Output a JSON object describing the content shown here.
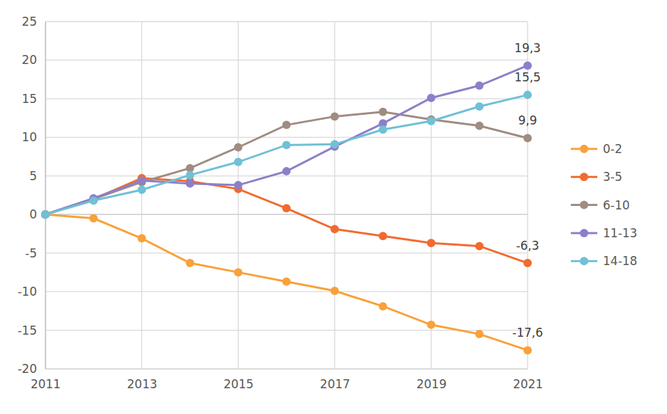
{
  "chart_data": {
    "type": "line",
    "x": [
      2011,
      2012,
      2013,
      2014,
      2015,
      2016,
      2017,
      2018,
      2019,
      2020,
      2021
    ],
    "xlim": [
      2011,
      2021
    ],
    "xticks": [
      2011,
      2013,
      2015,
      2017,
      2019,
      2021
    ],
    "ylim": [
      -20,
      25
    ],
    "yticks": [
      -20,
      -15,
      -10,
      -5,
      0,
      5,
      10,
      15,
      20,
      25
    ],
    "grid": true,
    "legend": "right",
    "series": [
      {
        "name": "0-2",
        "color": "#f9a13a",
        "marker": "circle",
        "values": [
          0,
          -0.5,
          -3.1,
          -6.3,
          -7.5,
          -8.7,
          -9.9,
          -11.9,
          -14.3,
          -15.5,
          -17.6
        ],
        "value_labels": [
          null,
          null,
          null,
          null,
          null,
          null,
          null,
          null,
          null,
          null,
          "-17,6"
        ]
      },
      {
        "name": "3-5",
        "color": "#f26a2e",
        "marker": "circle",
        "values": [
          0,
          2.0,
          4.7,
          4.3,
          3.3,
          0.8,
          -1.9,
          -2.8,
          -3.7,
          -4.1,
          -6.3
        ],
        "value_labels": [
          null,
          null,
          null,
          null,
          null,
          null,
          null,
          null,
          null,
          null,
          "-6,3"
        ]
      },
      {
        "name": "6-10",
        "color": "#a08c80",
        "marker": "circle",
        "values": [
          0,
          2.0,
          4.2,
          6.0,
          8.7,
          11.6,
          12.7,
          13.3,
          12.3,
          11.5,
          9.9
        ],
        "value_labels": [
          null,
          null,
          null,
          null,
          null,
          null,
          null,
          null,
          null,
          null,
          "9,9"
        ]
      },
      {
        "name": "11-13",
        "color": "#8c7fc9",
        "marker": "circle",
        "values": [
          0,
          2.1,
          4.4,
          4.0,
          3.8,
          5.6,
          8.8,
          11.8,
          15.1,
          16.7,
          19.3
        ],
        "value_labels": [
          null,
          null,
          null,
          null,
          null,
          null,
          null,
          null,
          null,
          null,
          "19,3"
        ]
      },
      {
        "name": "14-18",
        "color": "#70c0d6",
        "marker": "circle",
        "values": [
          0,
          1.8,
          3.2,
          5.1,
          6.8,
          9.0,
          9.1,
          11.0,
          12.1,
          14.0,
          15.5
        ],
        "value_labels": [
          null,
          null,
          null,
          null,
          null,
          null,
          null,
          null,
          null,
          null,
          "15,5"
        ]
      }
    ]
  }
}
